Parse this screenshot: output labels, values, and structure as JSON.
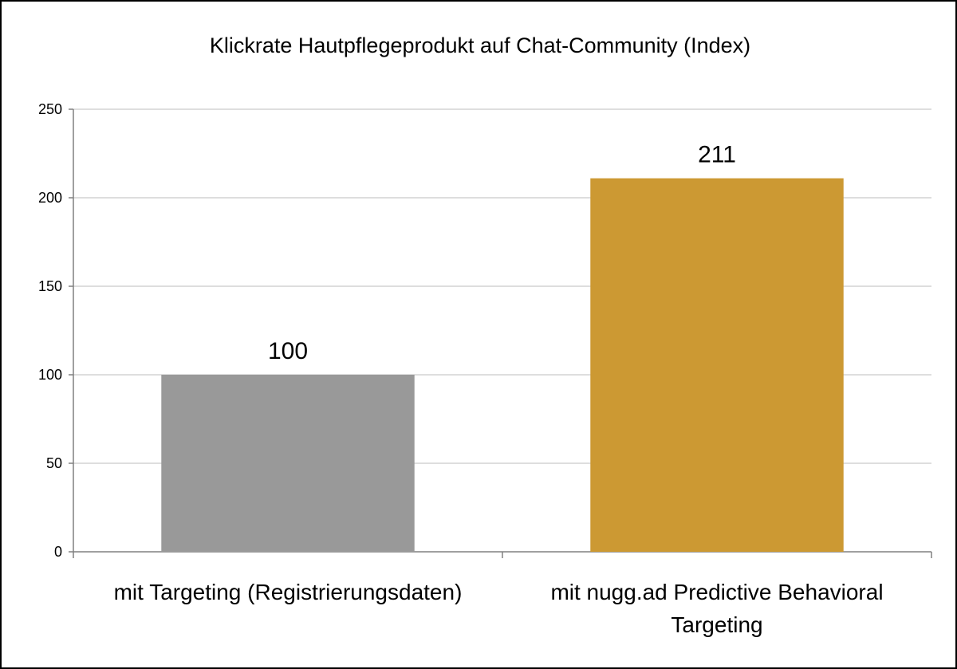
{
  "chart_data": {
    "type": "bar",
    "title": "Klickrate Hautpflegeprodukt auf Chat-Community (Index)",
    "xlabel": "",
    "ylabel": "",
    "categories": [
      [
        "mit Targeting (Registrierungsdaten)"
      ],
      [
        "mit nugg.ad Predictive Behavioral",
        "Targeting"
      ]
    ],
    "values": [
      100,
      211
    ],
    "data_labels": [
      "100",
      "211"
    ],
    "colors": [
      "#999999",
      "#cc9933"
    ],
    "ylim": [
      0,
      250
    ],
    "yticks": [
      0,
      50,
      100,
      150,
      200,
      250
    ],
    "grid": true,
    "legend": "none"
  }
}
